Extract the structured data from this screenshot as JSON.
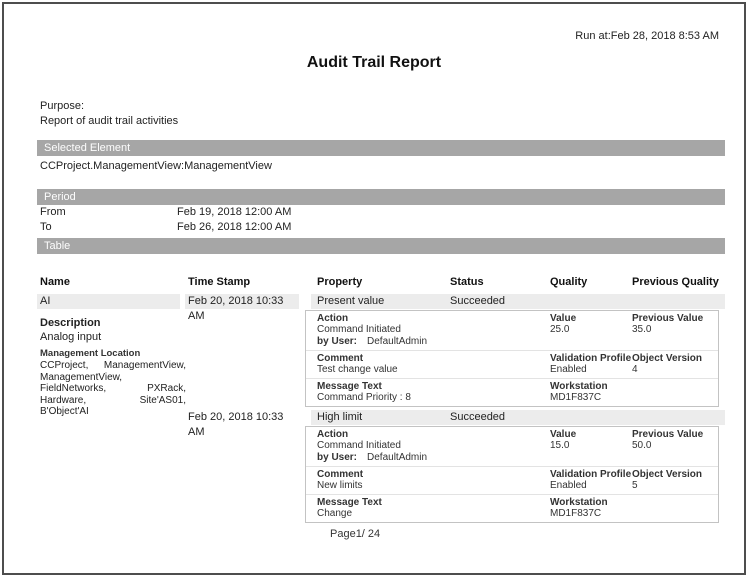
{
  "header": {
    "run_at": "Run at:Feb 28, 2018 8:53 AM",
    "title": "Audit Trail Report",
    "purpose_label": "Purpose:",
    "purpose_text": "Report of audit trail activities"
  },
  "selected_element": {
    "bar_label": "Selected Element",
    "value": "CCProject.ManagementView:ManagementView"
  },
  "period": {
    "bar_label": "Period",
    "from_label": "From",
    "from_value": "Feb 19, 2018 12:00 AM",
    "to_label": "To",
    "to_value": "Feb 26, 2018 12:00 AM"
  },
  "table": {
    "bar_label": "Table",
    "columns": [
      "Name",
      "Time Stamp",
      "Property",
      "Status",
      "Quality",
      "Previous Quality"
    ],
    "name_group": {
      "name": "AI",
      "description_label": "Description",
      "description": "Analog input",
      "location_label": "Management Location",
      "location": "CCProject, ManagementView, ManagementView, FieldNetworks, PXRack, Hardware, Site'AS01, B'Object'AI"
    },
    "entries": [
      {
        "timestamp": "Feb 20, 2018 10:33 AM",
        "property": "Present value",
        "status": "Succeeded",
        "action_label": "Action",
        "action": "Command Initiated",
        "by_user_label": "by User:",
        "by_user": "DefaultAdmin",
        "value_label": "Value",
        "value": "25.0",
        "previous_value_label": "Previous Value",
        "previous_value": "35.0",
        "comment_label": "Comment",
        "comment": "Test change value",
        "validation_profile_label": "Validation Profile",
        "validation_profile": "Enabled",
        "object_version_label": "Object Version",
        "object_version": "4",
        "message_text_label": "Message Text",
        "message_text": "Command  Priority : 8",
        "workstation_label": "Workstation",
        "workstation": "MD1F837C"
      },
      {
        "timestamp": "Feb 20, 2018 10:33 AM",
        "property": "High limit",
        "status": "Succeeded",
        "action_label": "Action",
        "action": "Command Initiated",
        "by_user_label": "by User:",
        "by_user": "DefaultAdmin",
        "value_label": "Value",
        "value": "15.0",
        "previous_value_label": "Previous Value",
        "previous_value": "50.0",
        "comment_label": "Comment",
        "comment": "New limits",
        "validation_profile_label": "Validation Profile",
        "validation_profile": "Enabled",
        "object_version_label": "Object Version",
        "object_version": "5",
        "message_text_label": "Message Text",
        "message_text": "Change",
        "workstation_label": "Workstation",
        "workstation": "MD1F837C"
      }
    ]
  },
  "footer": {
    "page": "Page1/ 24"
  },
  "colors": {
    "section_bar": "#a6a6a6",
    "row_band": "#ececec",
    "block_border": "#c3c3c3",
    "page_border": "#4d4d4d"
  }
}
